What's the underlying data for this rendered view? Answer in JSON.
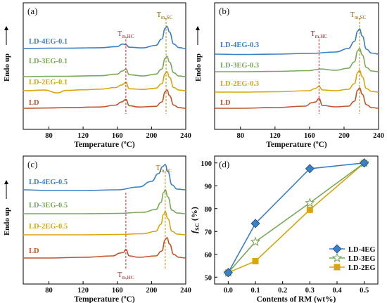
{
  "chart_data": [
    {
      "type": "line",
      "panel_label": "(a)",
      "xlabel": "Temperature (ºC)",
      "ylabel": "Endo up",
      "xlim": [
        50,
        240
      ],
      "xticks": [
        "80",
        "120",
        "160",
        "200",
        "240"
      ],
      "xtick_values": [
        80,
        120,
        160,
        200,
        240
      ],
      "peak_labels": {
        "hc": {
          "main": "T",
          "sub": "m,HC"
        },
        "sc": {
          "main": "T",
          "sub": "m,SC"
        }
      },
      "peak_temps": {
        "hc": 170,
        "sc": 217
      },
      "series": [
        {
          "name": "LD-4EG-0.1",
          "color": "#3b7fc4",
          "x": [
            50,
            80,
            100,
            140,
            160,
            166,
            170,
            174,
            190,
            205,
            212,
            216,
            218,
            221,
            226,
            232,
            240
          ],
          "y": [
            0.0,
            0.05,
            0.05,
            0.12,
            0.3,
            0.7,
            0.6,
            0.2,
            0.1,
            0.5,
            1.5,
            3.2,
            3.5,
            2.6,
            0.7,
            0.15,
            0.0
          ]
        },
        {
          "name": "LD-3EG-0.1",
          "color": "#79a85b",
          "x": [
            50,
            80,
            100,
            140,
            160,
            166,
            170,
            174,
            190,
            205,
            212,
            216,
            218,
            221,
            226,
            232,
            240
          ],
          "y": [
            0.0,
            0.05,
            0.05,
            0.15,
            0.4,
            0.9,
            1.2,
            0.3,
            0.1,
            0.4,
            1.2,
            2.9,
            3.2,
            2.3,
            0.6,
            0.1,
            0.0
          ]
        },
        {
          "name": "LD-2EG-0.1",
          "color": "#d9a60e",
          "x": [
            50,
            75,
            90,
            100,
            120,
            140,
            158,
            165,
            170,
            174,
            190,
            205,
            212,
            216,
            218,
            221,
            226,
            232,
            240
          ],
          "y": [
            0.0,
            0.1,
            -0.35,
            0.05,
            0.15,
            0.25,
            0.5,
            0.9,
            1.3,
            0.3,
            0.2,
            0.4,
            1.1,
            2.7,
            3.0,
            2.1,
            0.5,
            0.1,
            0.0
          ]
        },
        {
          "name": "LD",
          "color": "#c0542c",
          "x": [
            50,
            80,
            100,
            140,
            158,
            165,
            170,
            174,
            185,
            205,
            212,
            216,
            218,
            221,
            226,
            232,
            240
          ],
          "y": [
            0.0,
            0.05,
            0.1,
            0.2,
            0.5,
            1.0,
            1.4,
            0.4,
            0.2,
            0.3,
            1.0,
            2.6,
            2.9,
            2.0,
            0.5,
            0.1,
            0.0
          ]
        }
      ]
    },
    {
      "type": "line",
      "panel_label": "(b)",
      "xlabel": "Temperature (ºC)",
      "ylabel": "Endo up",
      "xlim": [
        50,
        240
      ],
      "xticks": [
        "80",
        "120",
        "160",
        "200",
        "240"
      ],
      "xtick_values": [
        80,
        120,
        160,
        200,
        240
      ],
      "peak_labels": {
        "hc": {
          "main": "T",
          "sub": "m,HC"
        },
        "sc": {
          "main": "T",
          "sub": "m,SC"
        }
      },
      "peak_temps": {
        "hc": 171,
        "sc": 218
      },
      "series": [
        {
          "name": "LD-4EG-0.3",
          "color": "#3b7fc4",
          "x": [
            50,
            80,
            120,
            160,
            190,
            205,
            212,
            216,
            218,
            221,
            226,
            232,
            240
          ],
          "y": [
            0.0,
            -0.05,
            0.0,
            0.1,
            0.3,
            0.8,
            1.8,
            3.3,
            3.6,
            2.6,
            0.7,
            0.15,
            0.0
          ]
        },
        {
          "name": "LD-3EG-0.3",
          "color": "#79a85b",
          "x": [
            50,
            80,
            120,
            160,
            168,
            172,
            190,
            205,
            212,
            216,
            218,
            221,
            226,
            232,
            240
          ],
          "y": [
            0.0,
            0.0,
            0.05,
            0.15,
            0.3,
            0.4,
            0.2,
            0.5,
            1.4,
            3.0,
            3.3,
            2.4,
            0.6,
            0.1,
            0.0
          ]
        },
        {
          "name": "LD-2EG-0.3",
          "color": "#d9a60e",
          "x": [
            50,
            80,
            120,
            160,
            166,
            171,
            175,
            190,
            205,
            212,
            216,
            218,
            221,
            226,
            232,
            240
          ],
          "y": [
            0.0,
            0.0,
            0.05,
            0.2,
            0.5,
            0.8,
            0.3,
            0.2,
            0.4,
            1.2,
            2.8,
            3.1,
            2.2,
            0.5,
            0.1,
            0.0
          ]
        },
        {
          "name": "LD",
          "color": "#c0542c",
          "x": [
            50,
            80,
            120,
            155,
            163,
            167,
            171,
            175,
            190,
            205,
            212,
            216,
            218,
            221,
            226,
            232,
            240
          ],
          "y": [
            0.0,
            0.0,
            0.1,
            0.3,
            0.8,
            0.9,
            1.4,
            0.4,
            0.2,
            0.3,
            1.0,
            2.6,
            2.9,
            2.0,
            0.5,
            0.1,
            0.0
          ]
        }
      ]
    },
    {
      "type": "line",
      "panel_label": "(c)",
      "xlabel": "Temperature (ºC)",
      "ylabel": "Endo up",
      "xlim": [
        50,
        240
      ],
      "xticks": [
        "80",
        "120",
        "160",
        "200",
        "240"
      ],
      "xtick_values": [
        80,
        120,
        160,
        200,
        240
      ],
      "peak_labels": {
        "hc": {
          "main": "T",
          "sub": "m,HC"
        },
        "sc": {
          "main": "T",
          "sub": "m,SC"
        }
      },
      "peak_temps": {
        "hc": 170,
        "sc": 216
      },
      "series": [
        {
          "name": "LD-4EG-0.5",
          "color": "#3b7fc4",
          "x": [
            50,
            80,
            120,
            160,
            185,
            200,
            208,
            213,
            216,
            219,
            224,
            230,
            240
          ],
          "y": [
            0.0,
            -0.1,
            -0.1,
            0.0,
            0.4,
            1.2,
            2.3,
            3.3,
            3.6,
            2.6,
            0.7,
            0.1,
            0.0
          ]
        },
        {
          "name": "LD-3EG-0.5",
          "color": "#79a85b",
          "x": [
            50,
            80,
            120,
            160,
            190,
            205,
            211,
            214,
            216,
            219,
            224,
            230,
            240
          ],
          "y": [
            0.0,
            0.0,
            0.0,
            0.05,
            0.2,
            0.6,
            1.6,
            3.0,
            3.4,
            2.4,
            0.5,
            0.1,
            0.0
          ]
        },
        {
          "name": "LD-2EG-0.5",
          "color": "#d9a60e",
          "x": [
            50,
            80,
            120,
            160,
            190,
            205,
            211,
            214,
            216,
            219,
            224,
            230,
            240
          ],
          "y": [
            0.0,
            0.0,
            0.0,
            0.05,
            0.15,
            0.5,
            1.5,
            2.9,
            3.3,
            2.3,
            0.5,
            0.1,
            0.0
          ]
        },
        {
          "name": "LD",
          "color": "#c0542c",
          "x": [
            50,
            80,
            120,
            155,
            163,
            167,
            170,
            174,
            185,
            205,
            212,
            216,
            218,
            221,
            226,
            232,
            240
          ],
          "y": [
            0.0,
            0.0,
            0.1,
            0.3,
            0.7,
            0.8,
            1.2,
            0.3,
            0.1,
            0.3,
            1.0,
            2.6,
            2.9,
            2.0,
            0.5,
            0.1,
            0.0
          ]
        }
      ]
    },
    {
      "type": "line",
      "panel_label": "(d)",
      "xlabel": "Contents of RM (wt%)",
      "ylabel": {
        "main": "f",
        "sub": "SC",
        "unit": " (%)"
      },
      "xlim": [
        -0.05,
        0.55
      ],
      "ylim": [
        47,
        103
      ],
      "xticks": [
        "0.0",
        "0.1",
        "0.2",
        "0.3",
        "0.4",
        "0.5"
      ],
      "xtick_values": [
        0.0,
        0.1,
        0.2,
        0.3,
        0.4,
        0.5
      ],
      "yticks": [
        "50",
        "60",
        "70",
        "80",
        "90",
        "100"
      ],
      "ytick_values": [
        50,
        60,
        70,
        80,
        90,
        100
      ],
      "legend_position": "bottom-right",
      "series": [
        {
          "name": "LD-4EG",
          "color": "#3b7fc4",
          "marker": "diamond",
          "x": [
            0.0,
            0.1,
            0.3,
            0.5
          ],
          "y": [
            52,
            73.5,
            97.5,
            100
          ]
        },
        {
          "name": "LD-3EG",
          "color": "#79a85b",
          "marker": "star",
          "x": [
            0.0,
            0.1,
            0.3,
            0.5
          ],
          "y": [
            52,
            65.5,
            82.5,
            100
          ]
        },
        {
          "name": "LD-2EG",
          "color": "#d9a60e",
          "marker": "square",
          "x": [
            0.0,
            0.1,
            0.3,
            0.5
          ],
          "y": [
            52,
            57,
            79.5,
            100
          ]
        }
      ]
    }
  ]
}
